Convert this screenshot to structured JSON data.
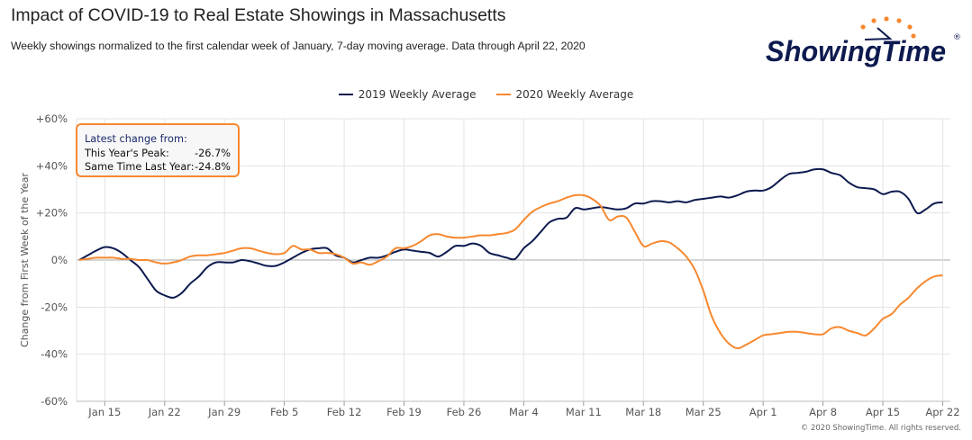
{
  "header": {
    "title": "Impact of COVID-19 to Real Estate Showings in Massachusetts",
    "subtitle": "Weekly showings normalized to the first calendar week of January, 7-day moving average. Data through April 22, 2020"
  },
  "logo": {
    "text": "ShowingTime",
    "mark": "®",
    "navy": "#0d1a4f",
    "orange": "#f7882f"
  },
  "annotation": {
    "heading": "Latest change from:",
    "rows": [
      {
        "label": "This Year's Peak:",
        "value": "-26.7%"
      },
      {
        "label": "Same Time Last Year:",
        "value": "-24.8%"
      }
    ],
    "border_color": "#f7882f"
  },
  "copyright": "© 2020 ShowingTime. All rights reserved.",
  "chart_data": {
    "type": "line",
    "title": "Impact of COVID-19 to Real Estate Showings in Massachusetts",
    "xlabel": "",
    "ylabel": "Change from First Week of the Year",
    "ylim": [
      -60,
      60
    ],
    "yticks": [
      60,
      40,
      20,
      0,
      -20,
      -40,
      -60
    ],
    "ytick_labels": [
      "+60%",
      "+40%",
      "+20%",
      "0%",
      "-20%",
      "-40%",
      "-60%"
    ],
    "xlim": [
      "2020-01-12",
      "2020-04-22"
    ],
    "xticks": [
      "2020-01-15",
      "2020-01-22",
      "2020-01-29",
      "2020-02-05",
      "2020-02-12",
      "2020-02-19",
      "2020-02-26",
      "2020-03-04",
      "2020-03-11",
      "2020-03-18",
      "2020-03-25",
      "2020-04-01",
      "2020-04-08",
      "2020-04-15",
      "2020-04-22"
    ],
    "xtick_labels": [
      "Jan 15",
      "Jan 22",
      "Jan 29",
      "Feb 5",
      "Feb 12",
      "Feb 19",
      "Feb 26",
      "Mar 4",
      "Mar 11",
      "Mar 18",
      "Mar 25",
      "Apr 1",
      "Apr 8",
      "Apr 15",
      "Apr 22"
    ],
    "grid": true,
    "legend": "top-center",
    "x_daily_from": "2020-01-12",
    "series": [
      {
        "name": "2019 Weekly Average",
        "color": "#0d1a4f",
        "values": [
          0,
          2,
          4,
          5.5,
          5,
          3,
          0,
          -3,
          -8,
          -13,
          -15,
          -16,
          -14,
          -10,
          -7,
          -3,
          -1,
          -1,
          -1,
          0,
          -0.5,
          -1.5,
          -2.5,
          -2.5,
          -1,
          1,
          3,
          4.5,
          5,
          5,
          2,
          1,
          -1,
          0,
          1,
          1,
          2,
          3.5,
          4.5,
          4,
          3.5,
          3,
          1.5,
          3.5,
          6,
          6,
          7,
          6,
          3,
          2,
          1,
          0.5,
          5,
          8,
          12,
          16,
          17.5,
          18,
          22,
          21.5,
          22,
          22.5,
          22,
          21.5,
          22,
          24,
          24,
          25,
          25,
          24.5,
          25,
          24.5,
          25.5,
          26,
          26.5,
          27,
          26.5,
          27.5,
          29,
          29.5,
          29.5,
          31,
          34,
          36.5,
          37,
          37.5,
          38.5,
          38.5,
          37,
          36,
          33,
          31,
          30.5,
          30,
          28,
          29,
          29,
          26,
          20,
          21.5,
          24,
          24.5
        ]
      },
      {
        "name": "2020 Weekly Average",
        "color": "#f7882f",
        "values": [
          0,
          0.5,
          1,
          1,
          1,
          0.5,
          0.5,
          0,
          0,
          -1,
          -1.5,
          -1,
          0,
          1.5,
          2,
          2,
          2.5,
          3,
          4,
          5,
          5,
          4,
          3,
          2.5,
          3,
          6,
          4.5,
          4.5,
          3,
          3,
          2.5,
          1,
          -1.5,
          -1,
          -2,
          -0.5,
          1.5,
          5,
          5,
          6,
          8,
          10.5,
          11,
          10,
          9.5,
          9.5,
          10,
          10.5,
          10.5,
          11,
          11.5,
          13,
          17,
          20.5,
          22.5,
          24,
          25,
          26.5,
          27.5,
          27.5,
          26,
          23,
          17,
          18.5,
          18,
          12,
          6,
          7,
          8,
          7.5,
          5,
          1.5,
          -4,
          -13,
          -24,
          -31,
          -35.5,
          -37.5,
          -36,
          -34,
          -32,
          -31.5,
          -31,
          -30.5,
          -30.5,
          -31,
          -31.5,
          -31.5,
          -29,
          -28.5,
          -30,
          -31,
          -32,
          -29,
          -25,
          -23,
          -19,
          -16,
          -12,
          -9,
          -7,
          -6.5
        ]
      }
    ]
  }
}
